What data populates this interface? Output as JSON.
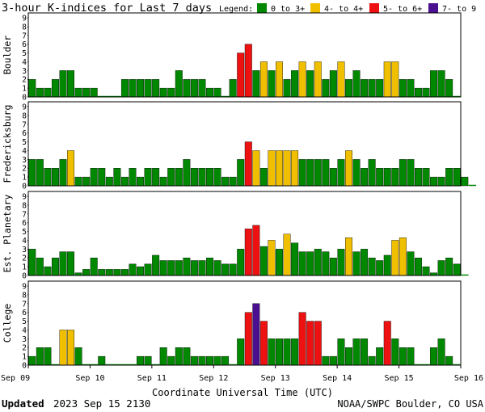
{
  "chart_data": [
    {
      "type": "bar",
      "panel": "Boulder",
      "values": [
        2,
        1,
        1,
        2,
        3,
        3,
        1,
        1,
        1,
        0,
        0,
        0,
        2,
        2,
        2,
        2,
        2,
        1,
        1,
        3,
        2,
        2,
        2,
        1,
        1,
        0,
        2,
        5,
        6,
        3,
        4,
        3,
        4,
        2,
        3,
        4,
        3,
        4,
        2,
        3,
        4,
        2,
        3,
        2,
        2,
        2,
        4,
        4,
        2,
        2,
        1,
        1,
        3,
        3,
        2,
        0
      ]
    },
    {
      "type": "bar",
      "panel": "Fredericksburg",
      "values": [
        3,
        3,
        2,
        2,
        3,
        4,
        1,
        1,
        2,
        2,
        1,
        2,
        1,
        2,
        1,
        2,
        2,
        1,
        2,
        2,
        3,
        2,
        2,
        2,
        2,
        1,
        1,
        3,
        5,
        4,
        2,
        4,
        4,
        4,
        4,
        3,
        3,
        3,
        3,
        2,
        3,
        4,
        3,
        2,
        3,
        2,
        2,
        2,
        3,
        3,
        2,
        2,
        1,
        1,
        2,
        2,
        1,
        0
      ]
    },
    {
      "type": "bar",
      "panel": "Est. Planetary",
      "values": [
        3,
        2,
        1,
        2,
        2.7,
        2.7,
        0.3,
        0.7,
        2,
        0.7,
        0.7,
        0.7,
        0.7,
        1.3,
        1,
        1.3,
        2.3,
        1.7,
        1.7,
        1.7,
        2,
        1.7,
        1.7,
        2,
        1.7,
        1.3,
        1.3,
        3,
        5.3,
        5.7,
        3.3,
        4,
        3,
        4.7,
        3.7,
        2.7,
        2.7,
        3,
        2.7,
        2,
        3,
        4.3,
        2.7,
        3,
        2,
        1.7,
        2.3,
        4,
        4.3,
        2.7,
        2,
        1,
        0.3,
        1.7,
        2,
        1.3,
        0
      ]
    },
    {
      "type": "bar",
      "panel": "College",
      "values": [
        1,
        2,
        2,
        0,
        4,
        4,
        2,
        0,
        0,
        1,
        0,
        0,
        0,
        0,
        1,
        1,
        0,
        2,
        1,
        2,
        2,
        1,
        1,
        1,
        1,
        1,
        0,
        3,
        6,
        7,
        5,
        3,
        3,
        3,
        3,
        6,
        5,
        5,
        1,
        1,
        3,
        2,
        3,
        3,
        1,
        2,
        5,
        3,
        2,
        2,
        0,
        0,
        2,
        3,
        1,
        0
      ]
    }
  ],
  "title": "3-hour K-indices for Last 7 days",
  "legend": {
    "label": "Legend:",
    "items": [
      {
        "label": "0 to 3+",
        "color": "#008800"
      },
      {
        "label": "4- to 4+",
        "color": "#f0c000"
      },
      {
        "label": "5- to 6+",
        "color": "#ee1111"
      },
      {
        "label": "7- to 9",
        "color": "#4b1090"
      }
    ]
  },
  "yticks": [
    "0",
    "1",
    "2",
    "3",
    "4",
    "5",
    "6",
    "7",
    "8",
    "9"
  ],
  "x_tick_labels": [
    "Sep 09",
    "Sep 10",
    "Sep 11",
    "Sep 12",
    "Sep 13",
    "Sep 14",
    "Sep 15",
    "Sep 16"
  ],
  "xlabel": "Coordinate Universal Time (UTC)",
  "footer": {
    "updated_label": "Updated",
    "updated_value": "2023 Sep 15 2130",
    "credit": "NOAA/SWPC Boulder, CO USA"
  },
  "colors": {
    "low": "#008800",
    "moderate": "#f0c000",
    "storm": "#ee1111",
    "severe": "#4b1090",
    "axis": "#000000"
  }
}
